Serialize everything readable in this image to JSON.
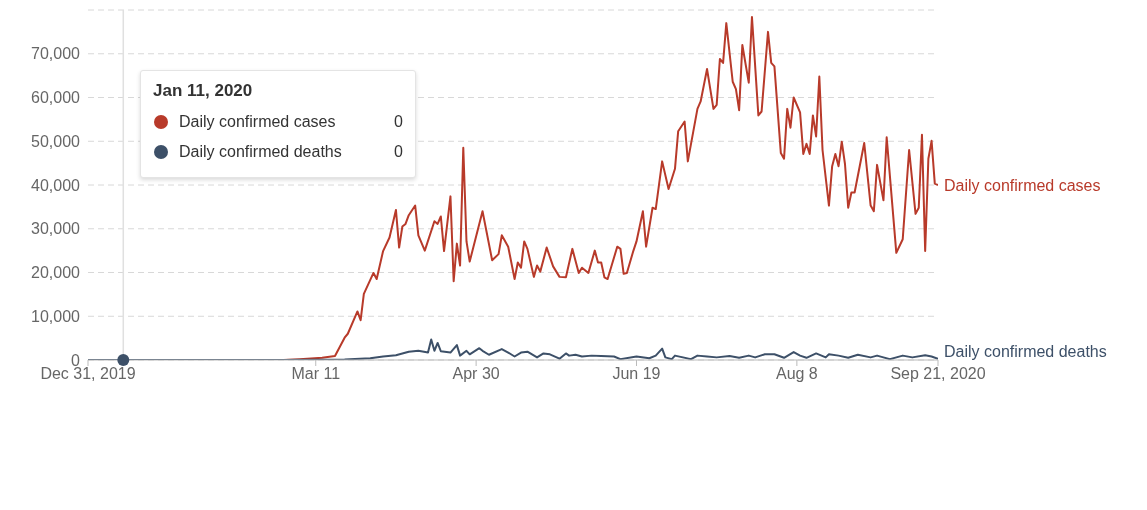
{
  "chart_data": {
    "type": "line",
    "xlim": [
      "2019-12-31",
      "2020-09-21"
    ],
    "xticks": [
      {
        "value": "2019-12-31",
        "label": "Dec 31, 2019"
      },
      {
        "value": "2020-03-11",
        "label": "Mar 11"
      },
      {
        "value": "2020-04-30",
        "label": "Apr 30"
      },
      {
        "value": "2020-06-19",
        "label": "Jun 19"
      },
      {
        "value": "2020-08-08",
        "label": "Aug 8"
      },
      {
        "value": "2020-09-21",
        "label": "Sep 21, 2020"
      }
    ],
    "ylim": [
      0,
      80000
    ],
    "yticks": [
      0,
      {
        "value": 10000,
        "label": "10,000"
      },
      {
        "value": 20000,
        "label": "20,000"
      },
      {
        "value": 30000,
        "label": "30,000"
      },
      {
        "value": 40000,
        "label": "40,000"
      },
      {
        "value": 50000,
        "label": "50,000"
      },
      {
        "value": 60000,
        "label": "60,000"
      },
      {
        "value": 70000,
        "label": "70,000"
      }
    ],
    "grid": "y",
    "legend": "top left",
    "legend_title": "Jan 11, 2020",
    "annotations": [
      "0",
      "0"
    ],
    "ref_lines": [
      {
        "axis": "x",
        "value": "2020-01-11",
        "label": null,
        "color": "#e0e0e0"
      }
    ],
    "series": [
      {
        "name": "Daily confirmed cases",
        "color": "#b83a2a",
        "x": [
          "2019-12-31",
          "2020-03-01",
          "2020-03-06",
          "2020-03-13",
          "2020-03-17",
          "2020-03-20",
          "2020-03-21",
          "2020-03-24",
          "2020-03-25",
          "2020-03-26",
          "2020-03-29",
          "2020-03-30",
          "2020-04-01",
          "2020-04-03",
          "2020-04-05",
          "2020-04-06",
          "2020-04-07",
          "2020-04-08",
          "2020-04-09",
          "2020-04-11",
          "2020-04-12",
          "2020-04-14",
          "2020-04-17",
          "2020-04-18",
          "2020-04-19",
          "2020-04-20",
          "2020-04-22",
          "2020-04-23",
          "2020-04-24",
          "2020-04-25",
          "2020-04-26",
          "2020-04-27",
          "2020-04-28",
          "2020-05-02",
          "2020-05-05",
          "2020-05-07",
          "2020-05-08",
          "2020-05-10",
          "2020-05-12",
          "2020-05-13",
          "2020-05-14",
          "2020-05-15",
          "2020-05-16",
          "2020-05-18",
          "2020-05-19",
          "2020-05-20",
          "2020-05-22",
          "2020-05-24",
          "2020-05-26",
          "2020-05-28",
          "2020-05-30",
          "2020-06-01",
          "2020-06-02",
          "2020-06-04",
          "2020-06-06",
          "2020-06-07",
          "2020-06-08",
          "2020-06-09",
          "2020-06-10",
          "2020-06-13",
          "2020-06-14",
          "2020-06-15",
          "2020-06-16",
          "2020-06-18",
          "2020-06-19",
          "2020-06-21",
          "2020-06-22",
          "2020-06-24",
          "2020-06-25",
          "2020-06-27",
          "2020-06-29",
          "2020-07-01",
          "2020-07-02",
          "2020-07-04",
          "2020-07-05",
          "2020-07-06",
          "2020-07-08",
          "2020-07-09",
          "2020-07-11",
          "2020-07-13",
          "2020-07-14",
          "2020-07-15",
          "2020-07-16",
          "2020-07-17",
          "2020-07-19",
          "2020-07-20",
          "2020-07-21",
          "2020-07-22",
          "2020-07-24",
          "2020-07-25",
          "2020-07-27",
          "2020-07-28",
          "2020-07-30",
          "2020-07-31",
          "2020-08-01",
          "2020-08-03",
          "2020-08-04",
          "2020-08-05",
          "2020-08-06",
          "2020-08-07",
          "2020-08-09",
          "2020-08-10",
          "2020-08-11",
          "2020-08-12",
          "2020-08-13",
          "2020-08-14",
          "2020-08-15",
          "2020-08-16",
          "2020-08-18",
          "2020-08-19",
          "2020-08-20",
          "2020-08-21",
          "2020-08-22",
          "2020-08-23",
          "2020-08-24",
          "2020-08-25",
          "2020-08-26",
          "2020-08-29",
          "2020-08-31",
          "2020-09-01",
          "2020-09-02",
          "2020-09-04",
          "2020-09-05",
          "2020-09-08",
          "2020-09-10",
          "2020-09-12",
          "2020-09-14",
          "2020-09-15",
          "2020-09-16",
          "2020-09-17",
          "2020-09-18",
          "2020-09-19",
          "2020-09-20",
          "2020-09-21"
        ],
        "values": [
          0,
          0,
          200,
          500,
          900,
          5100,
          6000,
          11100,
          9100,
          15100,
          19900,
          18500,
          24900,
          28000,
          34300,
          25700,
          30500,
          31100,
          33100,
          35300,
          28500,
          25000,
          31700,
          31100,
          32800,
          24900,
          37400,
          18000,
          26600,
          21600,
          48500,
          27100,
          22500,
          34000,
          22800,
          24200,
          28500,
          25900,
          18500,
          22300,
          21100,
          27100,
          25400,
          19000,
          21600,
          20200,
          25700,
          21400,
          19000,
          18900,
          25400,
          19900,
          21100,
          19900,
          25000,
          22300,
          22300,
          18900,
          18500,
          25900,
          25400,
          19700,
          19900,
          24900,
          27100,
          34000,
          25900,
          34800,
          34500,
          45400,
          39100,
          43700,
          52300,
          54500,
          45400,
          49400,
          57400,
          59100,
          66500,
          57400,
          58300,
          68800,
          67900,
          77000,
          63600,
          61900,
          57100,
          72000,
          63400,
          78400,
          55900,
          56800,
          75000,
          67900,
          67100,
          47300,
          46000,
          57400,
          53100,
          60000,
          56600,
          47100,
          49400,
          47100,
          55900,
          51100,
          64800,
          48000,
          35300,
          44300,
          47100,
          44300,
          49900,
          44800,
          34800,
          38300,
          38300,
          49600,
          35300,
          34000,
          44600,
          36500,
          50900,
          24500,
          27600,
          48000,
          33400,
          34800,
          51500,
          24900,
          46000,
          50100,
          40300,
          40000
        ]
      },
      {
        "name": "Daily confirmed deaths",
        "color": "#3d5068",
        "x": [
          "2019-12-31",
          "2020-03-01",
          "2020-03-20",
          "2020-03-28",
          "2020-04-01",
          "2020-04-05",
          "2020-04-09",
          "2020-04-12",
          "2020-04-15",
          "2020-04-16",
          "2020-04-17",
          "2020-04-18",
          "2020-04-19",
          "2020-04-22",
          "2020-04-24",
          "2020-04-25",
          "2020-04-27",
          "2020-04-28",
          "2020-05-01",
          "2020-05-02",
          "2020-05-04",
          "2020-05-08",
          "2020-05-10",
          "2020-05-12",
          "2020-05-14",
          "2020-05-16",
          "2020-05-19",
          "2020-05-21",
          "2020-05-23",
          "2020-05-26",
          "2020-05-28",
          "2020-05-29",
          "2020-05-31",
          "2020-06-02",
          "2020-06-05",
          "2020-06-08",
          "2020-06-12",
          "2020-06-14",
          "2020-06-19",
          "2020-06-23",
          "2020-06-25",
          "2020-06-27",
          "2020-06-28",
          "2020-06-30",
          "2020-07-01",
          "2020-07-06",
          "2020-07-08",
          "2020-07-11",
          "2020-07-14",
          "2020-07-18",
          "2020-07-21",
          "2020-07-24",
          "2020-07-26",
          "2020-07-29",
          "2020-08-01",
          "2020-08-04",
          "2020-08-07",
          "2020-08-09",
          "2020-08-11",
          "2020-08-14",
          "2020-08-17",
          "2020-08-18",
          "2020-08-21",
          "2020-08-24",
          "2020-08-27",
          "2020-08-31",
          "2020-09-02",
          "2020-09-06",
          "2020-09-10",
          "2020-09-13",
          "2020-09-17",
          "2020-09-19",
          "2020-09-21"
        ],
        "values": [
          0,
          0,
          100,
          400,
          800,
          1100,
          1900,
          2100,
          1700,
          4700,
          2100,
          3900,
          2000,
          1700,
          3400,
          1000,
          2100,
          1300,
          2700,
          2100,
          1200,
          2500,
          1700,
          800,
          1700,
          1900,
          600,
          1500,
          1300,
          300,
          1500,
          1000,
          1200,
          800,
          1000,
          900,
          800,
          200,
          800,
          400,
          1000,
          2600,
          600,
          200,
          1000,
          200,
          1000,
          800,
          600,
          900,
          500,
          1000,
          600,
          1300,
          1300,
          500,
          1800,
          1000,
          500,
          1500,
          600,
          1300,
          1000,
          500,
          1200,
          600,
          1000,
          200,
          1000,
          600,
          1100,
          800,
          300
        ]
      }
    ]
  }
}
